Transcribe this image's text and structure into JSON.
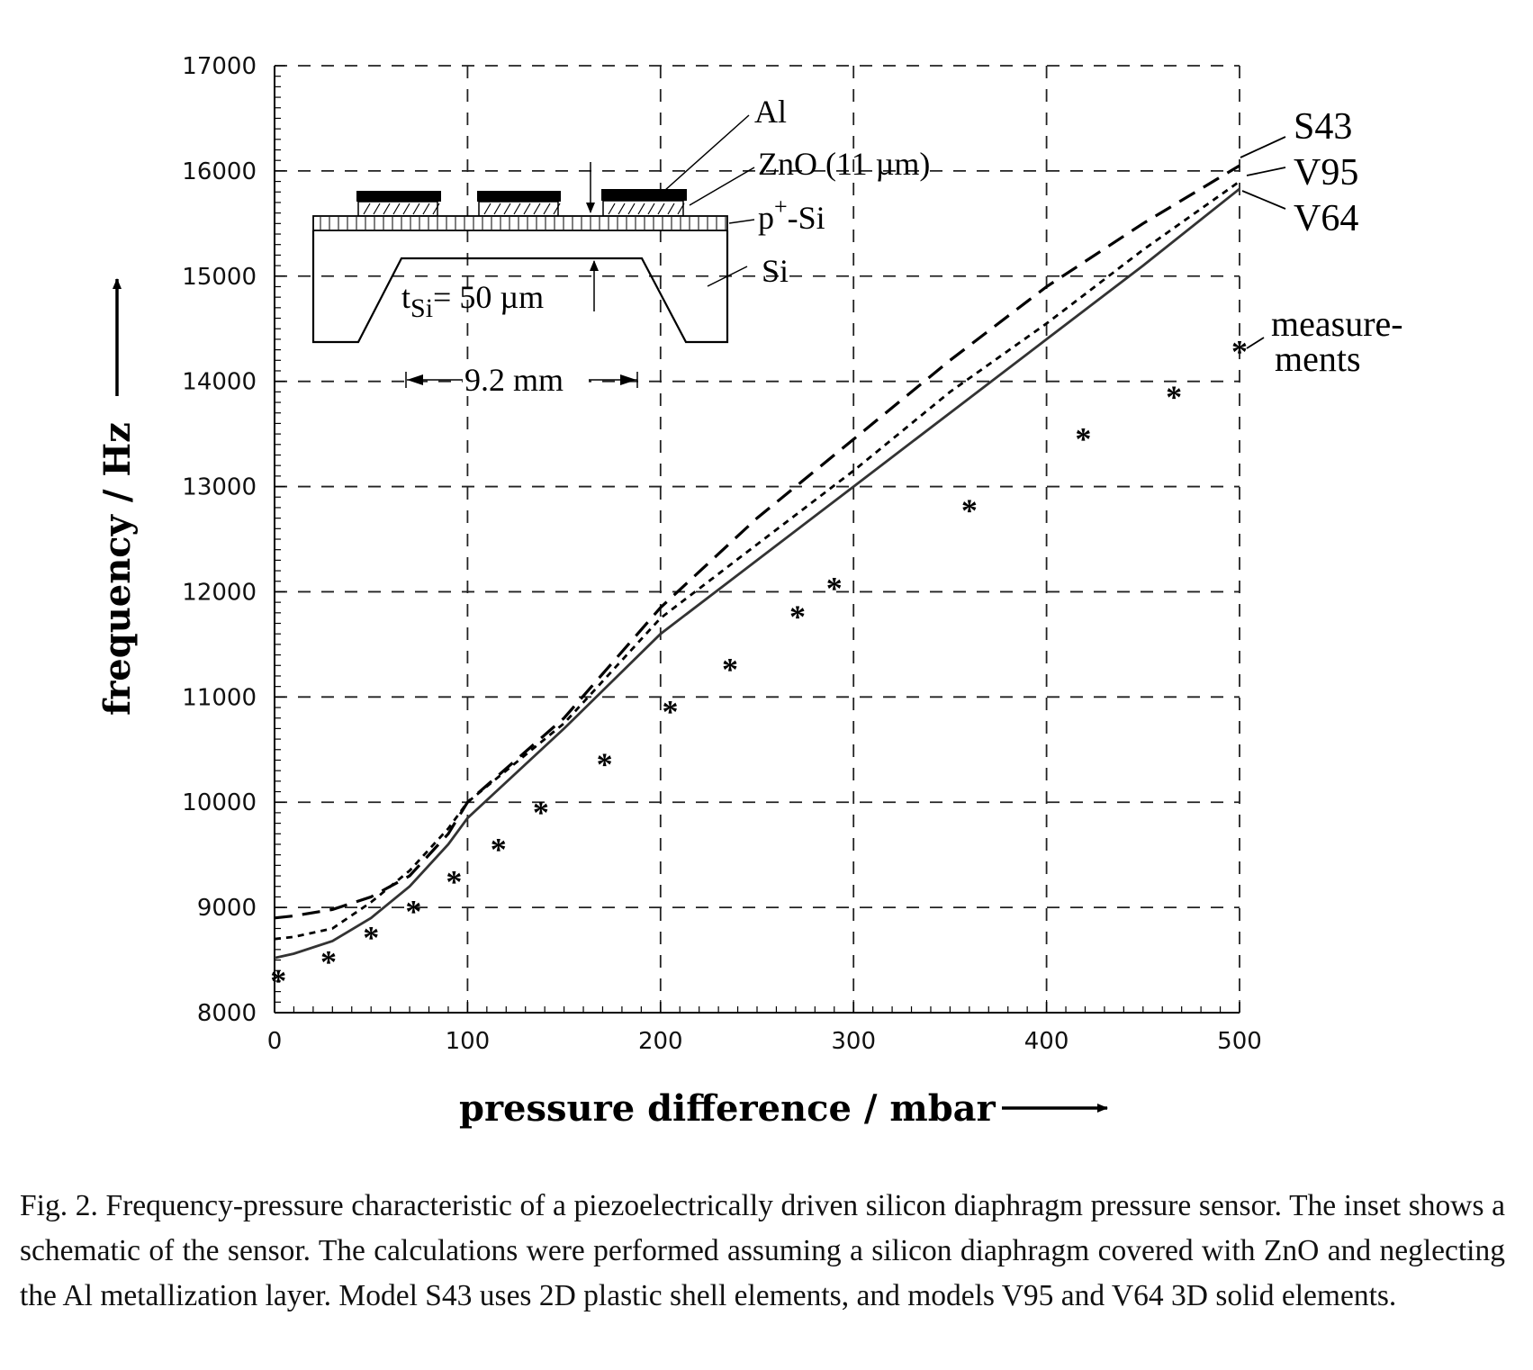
{
  "chart_data": {
    "type": "line",
    "xlabel": "pressure difference / mbar",
    "ylabel": "frequency / Hz",
    "xlim": [
      0,
      500
    ],
    "ylim": [
      8000,
      17000
    ],
    "x_ticks": [
      "0",
      "100",
      "200",
      "300",
      "400",
      "500"
    ],
    "y_ticks": [
      "8000",
      "9000",
      "10000",
      "11000",
      "12000",
      "13000",
      "14000",
      "15000",
      "16000",
      "17000"
    ],
    "grid": "dashed",
    "series": [
      {
        "name": "S43",
        "style": "dashed",
        "points": [
          [
            0,
            8900
          ],
          [
            10,
            8920
          ],
          [
            30,
            8980
          ],
          [
            50,
            9100
          ],
          [
            70,
            9300
          ],
          [
            90,
            9700
          ],
          [
            100,
            10000
          ],
          [
            150,
            10800
          ],
          [
            200,
            11850
          ],
          [
            250,
            12700
          ],
          [
            300,
            13450
          ],
          [
            350,
            14200
          ],
          [
            400,
            14900
          ],
          [
            450,
            15500
          ],
          [
            500,
            16050
          ]
        ]
      },
      {
        "name": "V95",
        "style": "dotted",
        "points": [
          [
            0,
            8700
          ],
          [
            10,
            8720
          ],
          [
            30,
            8800
          ],
          [
            50,
            9050
          ],
          [
            70,
            9350
          ],
          [
            90,
            9750
          ],
          [
            100,
            10000
          ],
          [
            150,
            10750
          ],
          [
            200,
            11750
          ],
          [
            250,
            12450
          ],
          [
            300,
            13150
          ],
          [
            350,
            13900
          ],
          [
            400,
            14550
          ],
          [
            450,
            15250
          ],
          [
            500,
            15900
          ]
        ]
      },
      {
        "name": "V64",
        "style": "solid",
        "points": [
          [
            0,
            8520
          ],
          [
            10,
            8560
          ],
          [
            30,
            8680
          ],
          [
            50,
            8900
          ],
          [
            70,
            9200
          ],
          [
            90,
            9600
          ],
          [
            100,
            9850
          ],
          [
            150,
            10700
          ],
          [
            200,
            11600
          ],
          [
            250,
            12300
          ],
          [
            300,
            13000
          ],
          [
            350,
            13700
          ],
          [
            400,
            14400
          ],
          [
            450,
            15100
          ],
          [
            500,
            15830
          ]
        ]
      },
      {
        "name": "measure-ments",
        "style": "markers",
        "points": [
          [
            2,
            8320
          ],
          [
            28,
            8500
          ],
          [
            50,
            8730
          ],
          [
            72,
            8980
          ],
          [
            93,
            9260
          ],
          [
            116,
            9570
          ],
          [
            138,
            9920
          ],
          [
            171,
            10380
          ],
          [
            205,
            10880
          ],
          [
            236,
            11280
          ],
          [
            271,
            11780
          ],
          [
            290,
            12050
          ],
          [
            360,
            12790
          ],
          [
            419,
            13470
          ],
          [
            466,
            13870
          ],
          [
            500,
            14300
          ]
        ]
      }
    ],
    "inset": {
      "labels": [
        "Al",
        "ZnO (11 µm)",
        "p",
        "+",
        "-Si",
        "Si"
      ],
      "thickness_label_t": "t",
      "thickness_label_sub": "Si",
      "thickness_label_value": "= 50 µm",
      "width_label": "9.2 mm"
    }
  },
  "caption": "Fig. 2.   Frequency-pressure characteristic of a piezoelectrically driven silicon diaphragm pressure sensor. The inset shows a schematic of the sensor.  The calculations were performed assuming a silicon diaphragm covered with ZnO and neglecting the Al metallization layer.  Model S43 uses 2D plastic shell elements, and models V95 and V64 3D solid elements."
}
